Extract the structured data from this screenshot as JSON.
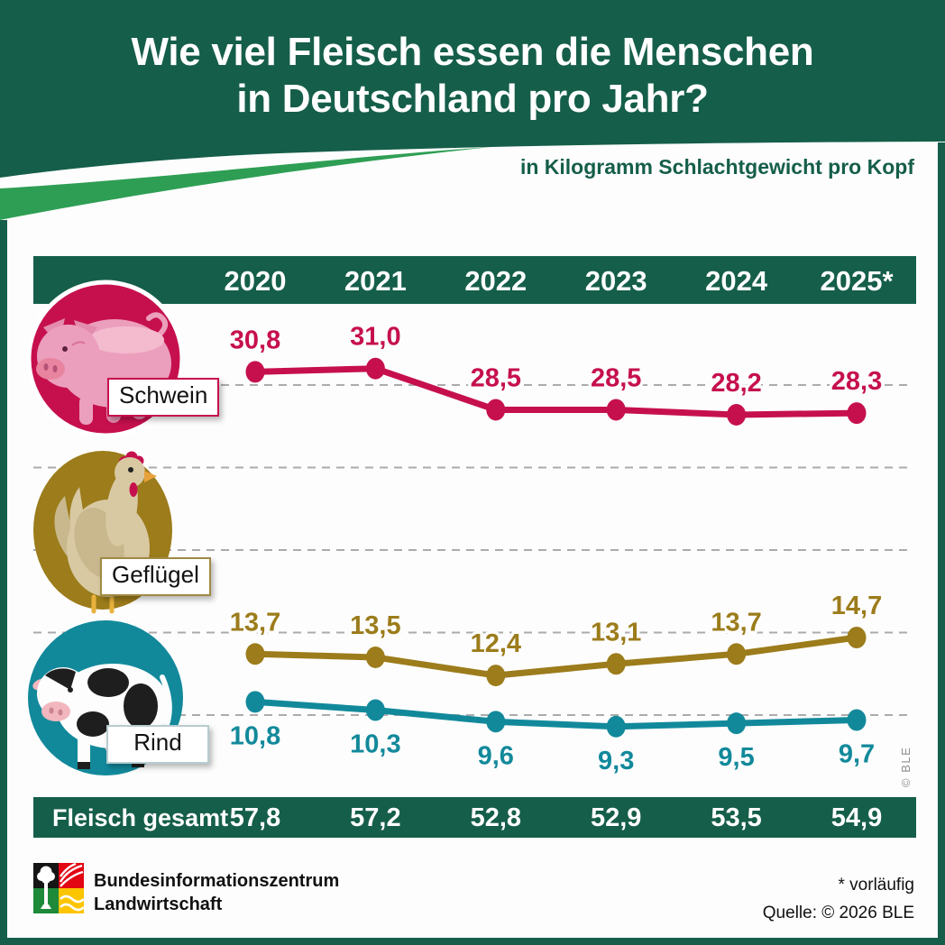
{
  "header": {
    "title_line1": "Wie viel Fleisch essen die Menschen",
    "title_line2": "in Deutschland pro Jahr?",
    "subtitle": "in Kilogramm Schlachtgewicht pro Kopf"
  },
  "chart_data": {
    "type": "line",
    "title": "Wie viel Fleisch essen die Menschen in Deutschland pro Jahr?",
    "ylabel": "in Kilogramm Schlachtgewicht pro Kopf",
    "categories": [
      "2020",
      "2021",
      "2022",
      "2023",
      "2024",
      "2025*"
    ],
    "series": [
      {
        "name": "Schwein",
        "color": "#C6104E",
        "values": [
          30.8,
          31.0,
          28.5,
          28.5,
          28.2,
          28.3
        ],
        "labels": [
          "30,8",
          "31,0",
          "28,5",
          "28,5",
          "28,2",
          "28,3"
        ],
        "label_position": "above"
      },
      {
        "name": "Geflügel",
        "color": "#9C7C1B",
        "values": [
          13.7,
          13.5,
          12.4,
          13.1,
          13.7,
          14.7
        ],
        "labels": [
          "13,7",
          "13,5",
          "12,4",
          "13,1",
          "13,7",
          "14,7"
        ],
        "label_position": "above"
      },
      {
        "name": "Rind",
        "color": "#12899B",
        "values": [
          10.8,
          10.3,
          9.6,
          9.3,
          9.5,
          9.7
        ],
        "labels": [
          "10,8",
          "10,3",
          "9,6",
          "9,3",
          "9,5",
          "9,7"
        ],
        "label_position": "below"
      }
    ],
    "total_row": {
      "label": "Fleisch gesamt",
      "values": [
        "57,8",
        "57,2",
        "52,8",
        "52,9",
        "53,5",
        "54,9"
      ]
    },
    "gridlines_kg": [
      30,
      25,
      20,
      15,
      10
    ],
    "ylim": [
      8,
      33
    ],
    "grid": true,
    "legend_position": "left-icons"
  },
  "icons": {
    "schwein": "pig-icon",
    "gefluegel": "chicken-icon",
    "rind": "cow-icon"
  },
  "watermark": "© BLE",
  "footer": {
    "org_line1": "Bundesinformationszentrum",
    "org_line2": "Landwirtschaft",
    "note": "* vorläufig",
    "source": "Quelle: © 2026 BLE"
  },
  "colors": {
    "dark_green": "#155E4A",
    "light_green": "#2E9E54",
    "schwein": "#C6104E",
    "gefluegel": "#9C7C1B",
    "rind": "#12899B",
    "gridline": "#ABABAB",
    "logo_red": "#E30613",
    "logo_green": "#1E8A3A",
    "logo_yellow": "#FDC400"
  }
}
